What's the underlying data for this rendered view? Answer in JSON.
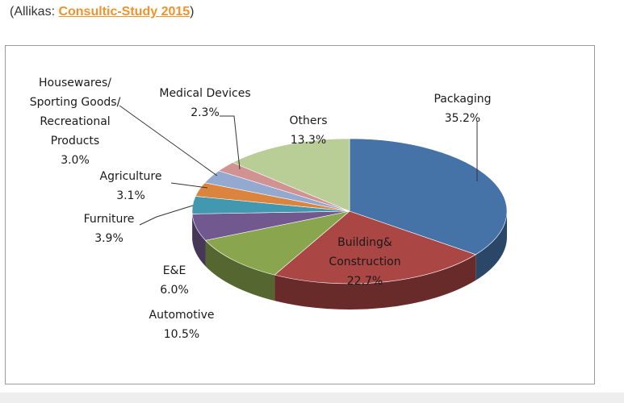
{
  "source": {
    "prefix": "(Allikas: ",
    "link": "Consultic-Study 2015",
    "suffix": ")"
  },
  "chart_data": {
    "type": "pie",
    "title": "",
    "three_d": true,
    "slices": [
      {
        "label_lines": [
          "Packaging"
        ],
        "value_text": "35.2%",
        "value": 35.2,
        "color": "#4572a7"
      },
      {
        "label_lines": [
          "Building&",
          "Construction"
        ],
        "value_text": "22.7%",
        "value": 22.7,
        "color": "#aa4643"
      },
      {
        "label_lines": [
          "Automotive"
        ],
        "value_text": "10.5%",
        "value": 10.5,
        "color": "#89a54e"
      },
      {
        "label_lines": [
          "E&E"
        ],
        "value_text": "6.0%",
        "value": 6.0,
        "color": "#71588f"
      },
      {
        "label_lines": [
          "Furniture"
        ],
        "value_text": "3.9%",
        "value": 3.9,
        "color": "#4198af"
      },
      {
        "label_lines": [
          "Agriculture"
        ],
        "value_text": "3.1%",
        "value": 3.1,
        "color": "#db843d"
      },
      {
        "label_lines": [
          "Housewares/",
          "Sporting Goods/",
          "Recreational",
          "Products"
        ],
        "value_text": "3.0%",
        "value": 3.0,
        "color": "#93a9cf"
      },
      {
        "label_lines": [
          "Medical Devices"
        ],
        "value_text": "2.3%",
        "value": 2.3,
        "color": "#d19392"
      },
      {
        "label_lines": [
          "Others"
        ],
        "value_text": "13.3%",
        "value": 13.3,
        "color": "#b9cd96"
      }
    ]
  }
}
